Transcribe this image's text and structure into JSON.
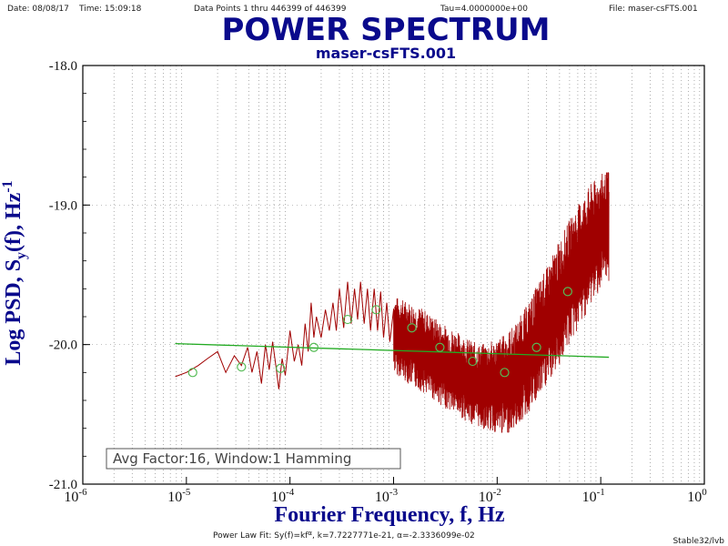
{
  "header": {
    "date": "Date: 08/08/17",
    "time": "Time: 15:09:18",
    "data_points": "Data Points 1 thru 446399 of 446399",
    "tau": "Tau=4.0000000e+00",
    "file": "File: maser-csFTS.001"
  },
  "footer": {
    "fit": "Power Law Fit: Sy(f)=kf",
    "fit_exponent": "α",
    "fit_params": ", k=7.7227771e-21, α=-2.3336099e-02",
    "credit": "Stable32/lvb"
  },
  "colors": {
    "title": "#0a0a8c",
    "spectrum": "#a00000",
    "fit": "#22aa22",
    "markers": "#55bb55",
    "grid": "#999999"
  },
  "chart_data": {
    "type": "line",
    "title": "POWER SPECTRUM",
    "subtitle": "maser-csFTS.001",
    "xlabel": "Fourier Frequency, f, Hz",
    "ylabel_parts": [
      "Log PSD,  S",
      "y",
      "(f),  Hz",
      "-1"
    ],
    "x_scale": "log",
    "xlim": [
      1e-06,
      1
    ],
    "ylim": [
      -21.0,
      -18.0
    ],
    "x_ticks": [
      {
        "base": "10",
        "exp": "-6",
        "value": 1e-06
      },
      {
        "base": "10",
        "exp": "-5",
        "value": 1e-05
      },
      {
        "base": "10",
        "exp": "-4",
        "value": 0.0001
      },
      {
        "base": "10",
        "exp": "-3",
        "value": 0.001
      },
      {
        "base": "10",
        "exp": "-2",
        "value": 0.01
      },
      {
        "base": "10",
        "exp": "-1",
        "value": 0.1
      },
      {
        "base": "10",
        "exp": "0",
        "value": 1
      }
    ],
    "y_ticks": [
      {
        "label": "-18.0",
        "value": -18.0
      },
      {
        "label": "-19.0",
        "value": -19.0
      },
      {
        "label": "-20.0",
        "value": -20.0
      },
      {
        "label": "-21.0",
        "value": -21.0
      }
    ],
    "grid": true,
    "annotation": "Avg Factor:16, Window:1 Hamming",
    "series": [
      {
        "kind": "psd",
        "points": [
          [
            7.8e-06,
            -20.23
          ],
          [
            1e-05,
            -20.2
          ],
          [
            1.3e-05,
            -20.15
          ],
          [
            1.6e-05,
            -20.1
          ],
          [
            2e-05,
            -20.05
          ],
          [
            2.4e-05,
            -20.2
          ],
          [
            2.9e-05,
            -20.08
          ],
          [
            3.4e-05,
            -20.15
          ],
          [
            3.9e-05,
            -20.02
          ],
          [
            4.3e-05,
            -20.2
          ],
          [
            4.8e-05,
            -20.05
          ],
          [
            5.3e-05,
            -20.28
          ],
          [
            5.8e-05,
            -20.0
          ],
          [
            6.3e-05,
            -20.18
          ],
          [
            6.8e-05,
            -19.98
          ],
          [
            7.3e-05,
            -20.15
          ],
          [
            7.8e-05,
            -20.32
          ],
          [
            8.4e-05,
            -20.1
          ],
          [
            9e-05,
            -20.22
          ],
          [
            0.0001,
            -19.9
          ],
          [
            0.00011,
            -20.12
          ],
          [
            0.00012,
            -20.0
          ],
          [
            0.00013,
            -20.15
          ],
          [
            0.00014,
            -19.85
          ],
          [
            0.00015,
            -20.05
          ],
          [
            0.00016,
            -19.7
          ],
          [
            0.00017,
            -19.95
          ],
          [
            0.00018,
            -19.8
          ],
          [
            0.0002,
            -19.95
          ],
          [
            0.00022,
            -19.75
          ],
          [
            0.00024,
            -19.9
          ],
          [
            0.00026,
            -19.7
          ],
          [
            0.00028,
            -19.9
          ],
          [
            0.0003,
            -19.6
          ],
          [
            0.00033,
            -19.88
          ],
          [
            0.00036,
            -19.55
          ],
          [
            0.00039,
            -19.85
          ],
          [
            0.00042,
            -19.6
          ],
          [
            0.00045,
            -19.82
          ],
          [
            0.00048,
            -19.55
          ],
          [
            0.00052,
            -19.85
          ],
          [
            0.00056,
            -19.6
          ],
          [
            0.0006,
            -19.9
          ],
          [
            0.00065,
            -19.6
          ],
          [
            0.0007,
            -19.9
          ],
          [
            0.00075,
            -19.62
          ],
          [
            0.0008,
            -19.95
          ],
          [
            0.00086,
            -19.7
          ],
          [
            0.00092,
            -19.98
          ],
          [
            0.001,
            -19.75
          ]
        ],
        "envelope": [
          [
            0.001,
            -19.65,
            -20.2
          ],
          [
            0.0015,
            -19.7,
            -20.3
          ],
          [
            0.002,
            -19.75,
            -20.35
          ],
          [
            0.003,
            -19.85,
            -20.45
          ],
          [
            0.004,
            -19.9,
            -20.5
          ],
          [
            0.005,
            -19.95,
            -20.55
          ],
          [
            0.006,
            -19.98,
            -20.58
          ],
          [
            0.007,
            -20.0,
            -20.6
          ],
          [
            0.008,
            -19.98,
            -20.62
          ],
          [
            0.01,
            -19.96,
            -20.64
          ],
          [
            0.012,
            -19.92,
            -20.65
          ],
          [
            0.015,
            -19.85,
            -20.6
          ],
          [
            0.02,
            -19.7,
            -20.5
          ],
          [
            0.025,
            -19.55,
            -20.4
          ],
          [
            0.03,
            -19.45,
            -20.3
          ],
          [
            0.04,
            -19.25,
            -20.15
          ],
          [
            0.05,
            -19.1,
            -20.0
          ],
          [
            0.06,
            -19.0,
            -19.9
          ],
          [
            0.07,
            -18.92,
            -19.8
          ],
          [
            0.08,
            -18.85,
            -19.72
          ],
          [
            0.1,
            -18.78,
            -19.6
          ],
          [
            0.12,
            -18.75,
            -19.55
          ]
        ]
      },
      {
        "kind": "fit",
        "k": 7.7227771e-21,
        "alpha": -0.023336099,
        "x_range": [
          7.8e-06,
          0.12
        ]
      },
      {
        "kind": "markers",
        "points": [
          [
            1.15e-05,
            -20.2
          ],
          [
            3.4e-05,
            -20.16
          ],
          [
            8.1e-05,
            -20.17
          ],
          [
            0.00017,
            -20.02
          ],
          [
            0.00036,
            -19.82
          ],
          [
            0.00068,
            -19.75
          ],
          [
            0.0015,
            -19.88
          ],
          [
            0.0028,
            -20.02
          ],
          [
            0.0058,
            -20.12
          ],
          [
            0.0118,
            -20.2
          ],
          [
            0.024,
            -20.02
          ],
          [
            0.048,
            -19.62
          ]
        ]
      }
    ]
  }
}
